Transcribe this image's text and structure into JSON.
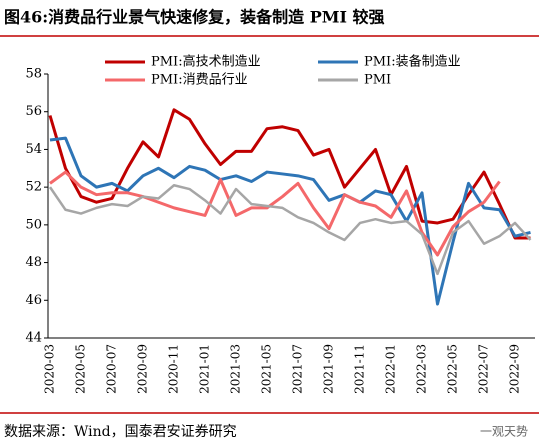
{
  "header": {
    "title": "图46:消费品行业景气快速修复，装备制造 PMI 较强"
  },
  "chart_data": {
    "type": "line",
    "categories": [
      "2020-03",
      null,
      "2020-05",
      null,
      "2020-07",
      null,
      "2020-09",
      null,
      "2020-11",
      null,
      "2021-01",
      null,
      "2021-03",
      null,
      "2021-05",
      null,
      "2021-07",
      null,
      "2021-09",
      null,
      "2021-11",
      null,
      "2022-01",
      null,
      "2022-03",
      null,
      "2022-05",
      null,
      "2022-07",
      null,
      "2022-09",
      null
    ],
    "series": [
      {
        "name": "PMI:高技术制造业",
        "color": "#c00000",
        "values": [
          55.8,
          53.0,
          51.5,
          51.2,
          51.4,
          53.0,
          54.4,
          53.6,
          56.1,
          55.6,
          54.3,
          53.2,
          53.9,
          53.9,
          55.1,
          55.2,
          55.0,
          53.7,
          54.0,
          52.0,
          53.0,
          54.0,
          51.6,
          53.1,
          50.2,
          50.1,
          50.3,
          51.6,
          52.8,
          51.1,
          49.3,
          49.3
        ]
      },
      {
        "name": "PMI:装备制造业",
        "color": "#2e75b6",
        "values": [
          54.5,
          54.6,
          52.6,
          52.0,
          52.2,
          51.8,
          52.6,
          53.0,
          52.5,
          53.1,
          52.9,
          52.4,
          52.6,
          52.3,
          52.8,
          52.7,
          52.6,
          52.4,
          51.3,
          51.6,
          51.2,
          51.8,
          51.6,
          50.2,
          51.7,
          45.8,
          49.1,
          52.2,
          50.9,
          50.8,
          49.4,
          49.6
        ]
      },
      {
        "name": "PMI:消费品行业",
        "color": "#f4686a",
        "values": [
          52.2,
          52.8,
          52.0,
          51.6,
          51.7,
          51.7,
          51.5,
          51.2,
          50.9,
          50.7,
          50.5,
          52.4,
          50.5,
          50.9,
          50.9,
          51.5,
          52.2,
          50.9,
          49.8,
          51.6,
          51.2,
          51.0,
          50.4,
          51.8,
          49.6,
          48.4,
          49.9,
          50.7,
          51.2,
          52.3,
          null,
          null
        ]
      },
      {
        "name": "PMI",
        "color": "#a6a6a6",
        "values": [
          52.0,
          50.8,
          50.6,
          50.9,
          51.1,
          51.0,
          51.5,
          51.4,
          52.1,
          51.9,
          51.3,
          50.6,
          51.9,
          51.1,
          51.0,
          50.9,
          50.4,
          50.1,
          49.6,
          49.2,
          50.1,
          50.3,
          50.1,
          50.2,
          49.5,
          47.4,
          49.6,
          50.2,
          49.0,
          49.4,
          50.1,
          49.2
        ]
      }
    ],
    "ylim": [
      44,
      58
    ],
    "yticks": [
      44,
      46,
      48,
      50,
      52,
      54,
      56,
      58
    ],
    "grid": false
  },
  "footer": {
    "source": "数据来源：Wind，国泰君安证券研究",
    "watermark": "一观天势"
  }
}
